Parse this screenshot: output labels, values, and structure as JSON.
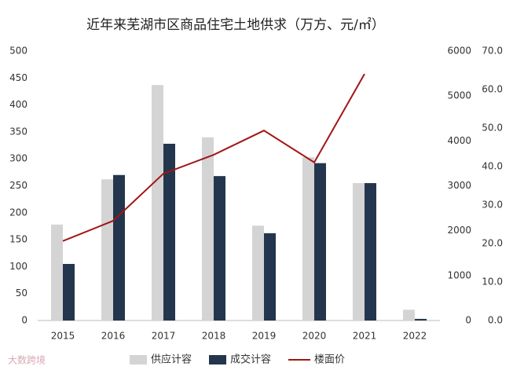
{
  "chart_data": {
    "type": "bar_line",
    "title": "近年来芜湖市区商品住宅土地供求（万方、元/㎡）",
    "watermark": "大数跨境",
    "categories": [
      "2015",
      "2016",
      "2017",
      "2018",
      "2019",
      "2020",
      "2021",
      "2022"
    ],
    "series": [
      {
        "name": "供应计容",
        "color": "#d4d4d4",
        "kind": "bar",
        "values": [
          178,
          262,
          437,
          340,
          176,
          303,
          255,
          20
        ]
      },
      {
        "name": "成交计容",
        "color": "#24364d",
        "kind": "bar",
        "values": [
          105,
          270,
          328,
          268,
          162,
          292,
          255,
          3
        ]
      },
      {
        "name": "楼面价",
        "color": "#a31515",
        "kind": "line",
        "axis": "y2",
        "values": [
          1770,
          2220,
          3270,
          3690,
          4230,
          3520,
          5490,
          null
        ]
      }
    ],
    "ylim": [
      0,
      500
    ],
    "yticks": [
      0,
      50,
      100,
      150,
      200,
      250,
      300,
      350,
      400,
      450,
      500
    ],
    "y2lim": [
      0,
      6000
    ],
    "y2ticks": [
      0,
      1000,
      2000,
      3000,
      4000,
      5000,
      6000
    ],
    "y3lim": [
      0,
      70
    ],
    "y3ticks": [
      {
        "value": 0,
        "label": "0.0"
      },
      {
        "value": 10,
        "label": "10.0"
      },
      {
        "value": 20,
        "label": "20.0"
      },
      {
        "value": 30,
        "label": "30.0"
      },
      {
        "value": 40,
        "label": "40.0"
      },
      {
        "value": 50,
        "label": "50.0"
      },
      {
        "value": 60,
        "label": "60.0"
      },
      {
        "value": 70,
        "label": "70.0"
      }
    ],
    "legend": "bottom"
  }
}
